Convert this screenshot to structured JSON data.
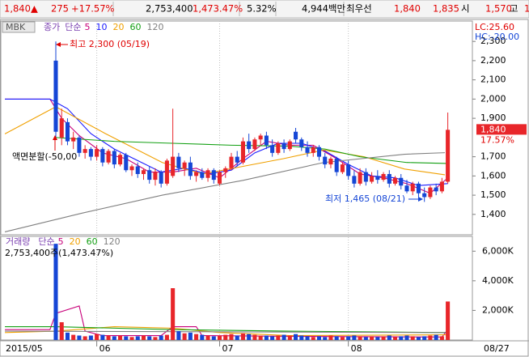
{
  "header": {
    "items": [
      {
        "text": "1,840",
        "color": "#e00000"
      },
      {
        "text": "▲",
        "color": "#e00000"
      },
      {
        "text": "275",
        "color": "#e00000"
      },
      {
        "text": "+17.57%",
        "color": "#e00000"
      },
      {
        "text": "2,753,400",
        "color": "#000000"
      },
      {
        "text": "1,473.47%",
        "color": "#e00000"
      },
      {
        "text": "5.32%",
        "color": "#000000"
      },
      {
        "text": "4,944백만",
        "color": "#000000"
      },
      {
        "text": "최우선",
        "color": "#000000"
      },
      {
        "text": "1,840",
        "color": "#e00000"
      },
      {
        "text": "1,835",
        "color": "#e00000"
      },
      {
        "text": "시",
        "color": "#000000"
      },
      {
        "text": "1,570",
        "color": "#e00000"
      },
      {
        "text": "고",
        "color": "#000000"
      },
      {
        "text": "1",
        "color": "#e00000"
      }
    ]
  },
  "chart_data": [
    {
      "type": "candlestick",
      "title": "MBK",
      "legend_items": [
        "종가",
        "단순"
      ],
      "up_color": "#e8262a",
      "down_color": "#1546d6",
      "open": [
        2200,
        1800,
        1880,
        1780,
        1800,
        1720,
        1740,
        1700,
        1740,
        1670,
        1730,
        1660,
        1710,
        1630,
        1650,
        1610,
        1630,
        1580,
        1620,
        1560,
        1600,
        1700,
        1640,
        1670,
        1600,
        1620,
        1590,
        1630,
        1560,
        1620,
        1640,
        1700,
        1670,
        1780,
        1740,
        1790,
        1810,
        1760,
        1720,
        1770,
        1740,
        1830,
        1790,
        1750,
        1720,
        1750,
        1700,
        1660,
        1690,
        1620,
        1660,
        1600,
        1560,
        1620,
        1570,
        1600,
        1580,
        1610,
        1560,
        1590,
        1550,
        1520,
        1560,
        1510,
        1490,
        1540,
        1520,
        1570
      ],
      "high": [
        2300,
        1950,
        1900,
        1830,
        1810,
        1760,
        1750,
        1760,
        1750,
        1740,
        1740,
        1720,
        1720,
        1660,
        1670,
        1640,
        1650,
        1640,
        1630,
        1690,
        1950,
        1720,
        1680,
        1700,
        1630,
        1640,
        1640,
        1640,
        1630,
        1650,
        1720,
        1730,
        1800,
        1820,
        1800,
        1820,
        1830,
        1790,
        1780,
        1790,
        1790,
        1850,
        1800,
        1780,
        1760,
        1760,
        1720,
        1700,
        1700,
        1670,
        1680,
        1630,
        1640,
        1640,
        1620,
        1630,
        1620,
        1630,
        1600,
        1610,
        1580,
        1570,
        1570,
        1540,
        1550,
        1560,
        1590,
        1930
      ],
      "low": [
        1790,
        1760,
        1760,
        1740,
        1700,
        1690,
        1680,
        1680,
        1650,
        1660,
        1640,
        1650,
        1620,
        1600,
        1590,
        1580,
        1560,
        1550,
        1540,
        1550,
        1590,
        1620,
        1600,
        1580,
        1570,
        1580,
        1570,
        1560,
        1550,
        1590,
        1630,
        1650,
        1660,
        1720,
        1730,
        1760,
        1740,
        1700,
        1710,
        1720,
        1730,
        1770,
        1730,
        1700,
        1700,
        1680,
        1640,
        1640,
        1600,
        1610,
        1580,
        1540,
        1550,
        1550,
        1560,
        1560,
        1570,
        1540,
        1550,
        1530,
        1510,
        1500,
        1490,
        1465,
        1480,
        1500,
        1510,
        1560
      ],
      "close": [
        1830,
        1900,
        1780,
        1800,
        1720,
        1740,
        1700,
        1740,
        1670,
        1730,
        1660,
        1710,
        1630,
        1650,
        1610,
        1630,
        1580,
        1620,
        1560,
        1680,
        1700,
        1640,
        1670,
        1600,
        1620,
        1590,
        1630,
        1580,
        1620,
        1640,
        1700,
        1670,
        1780,
        1740,
        1790,
        1810,
        1760,
        1720,
        1770,
        1740,
        1780,
        1790,
        1750,
        1720,
        1750,
        1700,
        1660,
        1690,
        1620,
        1660,
        1600,
        1560,
        1620,
        1570,
        1600,
        1580,
        1610,
        1560,
        1590,
        1550,
        1520,
        1560,
        1510,
        1490,
        1540,
        1520,
        1570,
        1840
      ],
      "series": [
        {
          "name": "5",
          "color": "#c8007a",
          "x": [
            -8.7,
            -1,
            1,
            4,
            8,
            12,
            16,
            20,
            24,
            28,
            32,
            36,
            40,
            44,
            48,
            52,
            56,
            60,
            64,
            67
          ],
          "values": [
            2000,
            2000,
            1900,
            1810,
            1720,
            1690,
            1620,
            1620,
            1640,
            1590,
            1690,
            1780,
            1760,
            1760,
            1690,
            1610,
            1590,
            1560,
            1510,
            1590
          ]
        },
        {
          "name": "10",
          "color": "#1a1aff",
          "x": [
            -8.7,
            -1,
            2,
            6,
            10,
            14,
            18,
            22,
            26,
            30,
            34,
            38,
            42,
            46,
            50,
            54,
            58,
            62,
            67
          ],
          "values": [
            2000,
            2000,
            1950,
            1820,
            1740,
            1680,
            1620,
            1640,
            1610,
            1630,
            1720,
            1770,
            1770,
            1730,
            1660,
            1600,
            1590,
            1550,
            1560
          ]
        },
        {
          "name": "20",
          "color": "#f0a000",
          "x": [
            -8.7,
            0,
            8.5,
            18.2,
            25.1,
            32,
            38.9,
            45.8,
            52.7,
            59.6,
            66.5
          ],
          "values": [
            1819,
            1960,
            1820,
            1670,
            1610,
            1650,
            1690,
            1735,
            1700,
            1636,
            1606
          ]
        },
        {
          "name": "60",
          "color": "#14a014",
          "x": [
            0,
            10,
            20,
            30,
            40,
            46,
            52,
            60,
            67
          ],
          "values": [
            1800,
            1780,
            1770,
            1760,
            1755,
            1740,
            1700,
            1670,
            1665
          ]
        },
        {
          "name": "120",
          "color": "#808080",
          "x": [
            -8.7,
            4.4,
            18.2,
            32,
            45.8,
            59.6,
            66.5
          ],
          "values": [
            1309,
            1406,
            1500,
            1577,
            1670,
            1713,
            1721
          ]
        }
      ],
      "xlim": [
        -9.4,
        71.2
      ],
      "ylim": [
        1294,
        2406
      ],
      "yticks": [
        {
          "value": 1400,
          "label": "1,400"
        },
        {
          "value": 1500,
          "label": "1,500"
        },
        {
          "value": 1600,
          "label": "1,600"
        },
        {
          "value": 1700,
          "label": "1,700"
        },
        {
          "value": 1900,
          "label": "1,900"
        },
        {
          "value": 2000,
          "label": "2,000"
        },
        {
          "value": 2100,
          "label": "2,100"
        },
        {
          "value": 2200,
          "label": "2,200"
        },
        {
          "value": 2300,
          "label": "2,300"
        }
      ],
      "current": {
        "value": 1840,
        "label": "1,840"
      },
      "current_change": "17.57%",
      "lc": "LC:25.60",
      "hc": "HC:-20.00",
      "annotations": {
        "high": "최고 2,300 (05/19)",
        "low": "최저 1,465 (08/21)",
        "split": "액면분할(-50,00"
      }
    },
    {
      "type": "bar",
      "title": "거래량",
      "legend_items": [
        "단순"
      ],
      "subtitle": "2,753,400주(1,473.47%)",
      "up_color": "#e8262a",
      "down_color": "#1546d6",
      "values": [
        6500,
        1200,
        500,
        350,
        300,
        250,
        300,
        400,
        350,
        300,
        250,
        300,
        250,
        200,
        250,
        300,
        250,
        200,
        300,
        350,
        3500,
        600,
        450,
        500,
        400,
        350,
        300,
        250,
        300,
        350,
        400,
        300,
        450,
        400,
        350,
        300,
        300,
        250,
        300,
        350,
        300,
        400,
        300,
        250,
        200,
        250,
        200,
        300,
        250,
        200,
        250,
        300,
        250,
        200,
        250,
        200,
        250,
        300,
        200,
        250,
        300,
        250,
        200,
        250,
        300,
        350,
        250,
        2600
      ],
      "series": [
        {
          "name": "5",
          "color": "#c8007a",
          "x": [
            -8.7,
            -1,
            0,
            4,
            5,
            8,
            18,
            20,
            24,
            25,
            40,
            66,
            67
          ],
          "values": [
            700,
            700,
            1800,
            2300,
            600,
            300,
            300,
            900,
            900,
            300,
            250,
            200,
            700
          ]
        },
        {
          "name": "20",
          "color": "#f0a000",
          "x": [
            -8.7,
            0,
            10,
            20,
            28,
            40,
            67
          ],
          "values": [
            500,
            600,
            900,
            800,
            500,
            300,
            350
          ]
        },
        {
          "name": "60",
          "color": "#14a014",
          "x": [
            -8.7,
            0,
            20,
            40,
            67
          ],
          "values": [
            900,
            900,
            700,
            600,
            500
          ]
        },
        {
          "name": "120",
          "color": "#808080",
          "x": [
            -8.7,
            67
          ],
          "values": [
            600,
            500
          ]
        }
      ],
      "xlim": [
        -9.4,
        71.2
      ],
      "ylim": [
        0,
        7000
      ],
      "yticks": [
        {
          "value": 2000,
          "label": "2,000K"
        },
        {
          "value": 4000,
          "label": "4,000K"
        },
        {
          "value": 6000,
          "label": "6,000K"
        }
      ],
      "xticks": [
        {
          "value": -9.4,
          "label": "2015/05"
        },
        {
          "value": 7,
          "label": "06"
        },
        {
          "value": 28,
          "label": "07"
        },
        {
          "value": 50,
          "label": "08"
        }
      ],
      "last_date": "08/27"
    }
  ]
}
